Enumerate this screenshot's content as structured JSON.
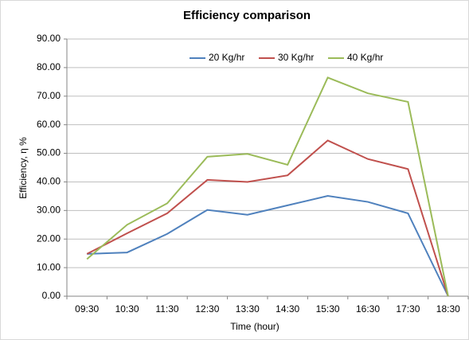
{
  "chart_data": {
    "type": "line",
    "title": "Efficiency comparison",
    "x_label": "Time (hour)",
    "y_label": "Efficiency, η %",
    "categories": [
      "09:30",
      "10:30",
      "11:30",
      "12:30",
      "13:30",
      "14:30",
      "15:30",
      "16:30",
      "17:30",
      "18:30"
    ],
    "series": [
      {
        "name": "20 Kg/hr",
        "color": "#4f81bd",
        "values": [
          14.8,
          15.3,
          21.8,
          30.2,
          28.5,
          31.8,
          35.1,
          33.0,
          29.0,
          0
        ]
      },
      {
        "name": "30 Kg/hr",
        "color": "#c0504d",
        "values": [
          14.8,
          22.0,
          29.0,
          40.7,
          40.0,
          42.3,
          54.5,
          48.0,
          44.5,
          0
        ]
      },
      {
        "name": "40 Kg/hr",
        "color": "#9bbb59",
        "values": [
          13.0,
          25.0,
          32.5,
          48.8,
          49.8,
          46.0,
          76.5,
          71.0,
          68.0,
          0
        ]
      }
    ],
    "ylim": [
      0,
      90
    ],
    "yticks": [
      {
        "value": 0,
        "label": "0.00"
      },
      {
        "value": 10,
        "label": "10.00"
      },
      {
        "value": 20,
        "label": "20.00"
      },
      {
        "value": 30,
        "label": "30.00"
      },
      {
        "value": 40,
        "label": "40.00"
      },
      {
        "value": 50,
        "label": "50.00"
      },
      {
        "value": 60,
        "label": "60.00"
      },
      {
        "value": 70,
        "label": "70.00"
      },
      {
        "value": 80,
        "label": "80.00"
      },
      {
        "value": 90,
        "label": "90.00"
      }
    ],
    "grid": true,
    "legend": "top"
  }
}
